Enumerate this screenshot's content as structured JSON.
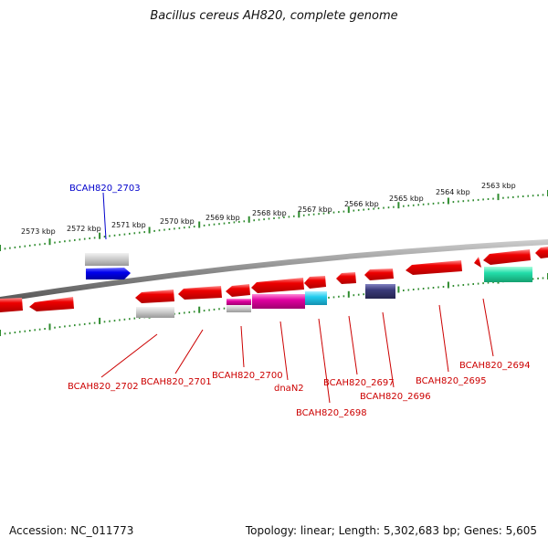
{
  "title": "Bacillus cereus AH820, complete genome",
  "footer": {
    "accession": "Accession: NC_011773",
    "summary": "Topology: linear; Length: 5,302,683 bp; Genes: 5,605"
  },
  "scale_labels": [
    "2573 kbp",
    "2572 kbp",
    "2571 kbp",
    "2570 kbp",
    "2569 kbp",
    "2568 kbp",
    "2567 kbp",
    "2566 kbp",
    "2565 kbp",
    "2564 kbp",
    "2563 kbp"
  ],
  "gene_labels": {
    "forward": [
      "BCAH820_2703"
    ],
    "reverse": [
      "BCAH820_2702",
      "BCAH820_2701",
      "BCAH820_2700",
      "dnaN2",
      "BCAH820_2698",
      "BCAH820_2697",
      "BCAH820_2696",
      "BCAH820_2695",
      "BCAH820_2694"
    ]
  },
  "colors": {
    "forward_label": "#0000cc",
    "reverse_label": "#cc0000",
    "cds": "#ee0000",
    "backbone": "#888888",
    "ticks": "#2e8b2e",
    "forward_gene": "#0000ee",
    "cog_magenta": "#e000a0",
    "cog_cyan": "#22ccee",
    "cog_navy": "#3a3a7a",
    "cog_teal": "#22ddaa",
    "cog_grey": "#bbbbbb"
  }
}
